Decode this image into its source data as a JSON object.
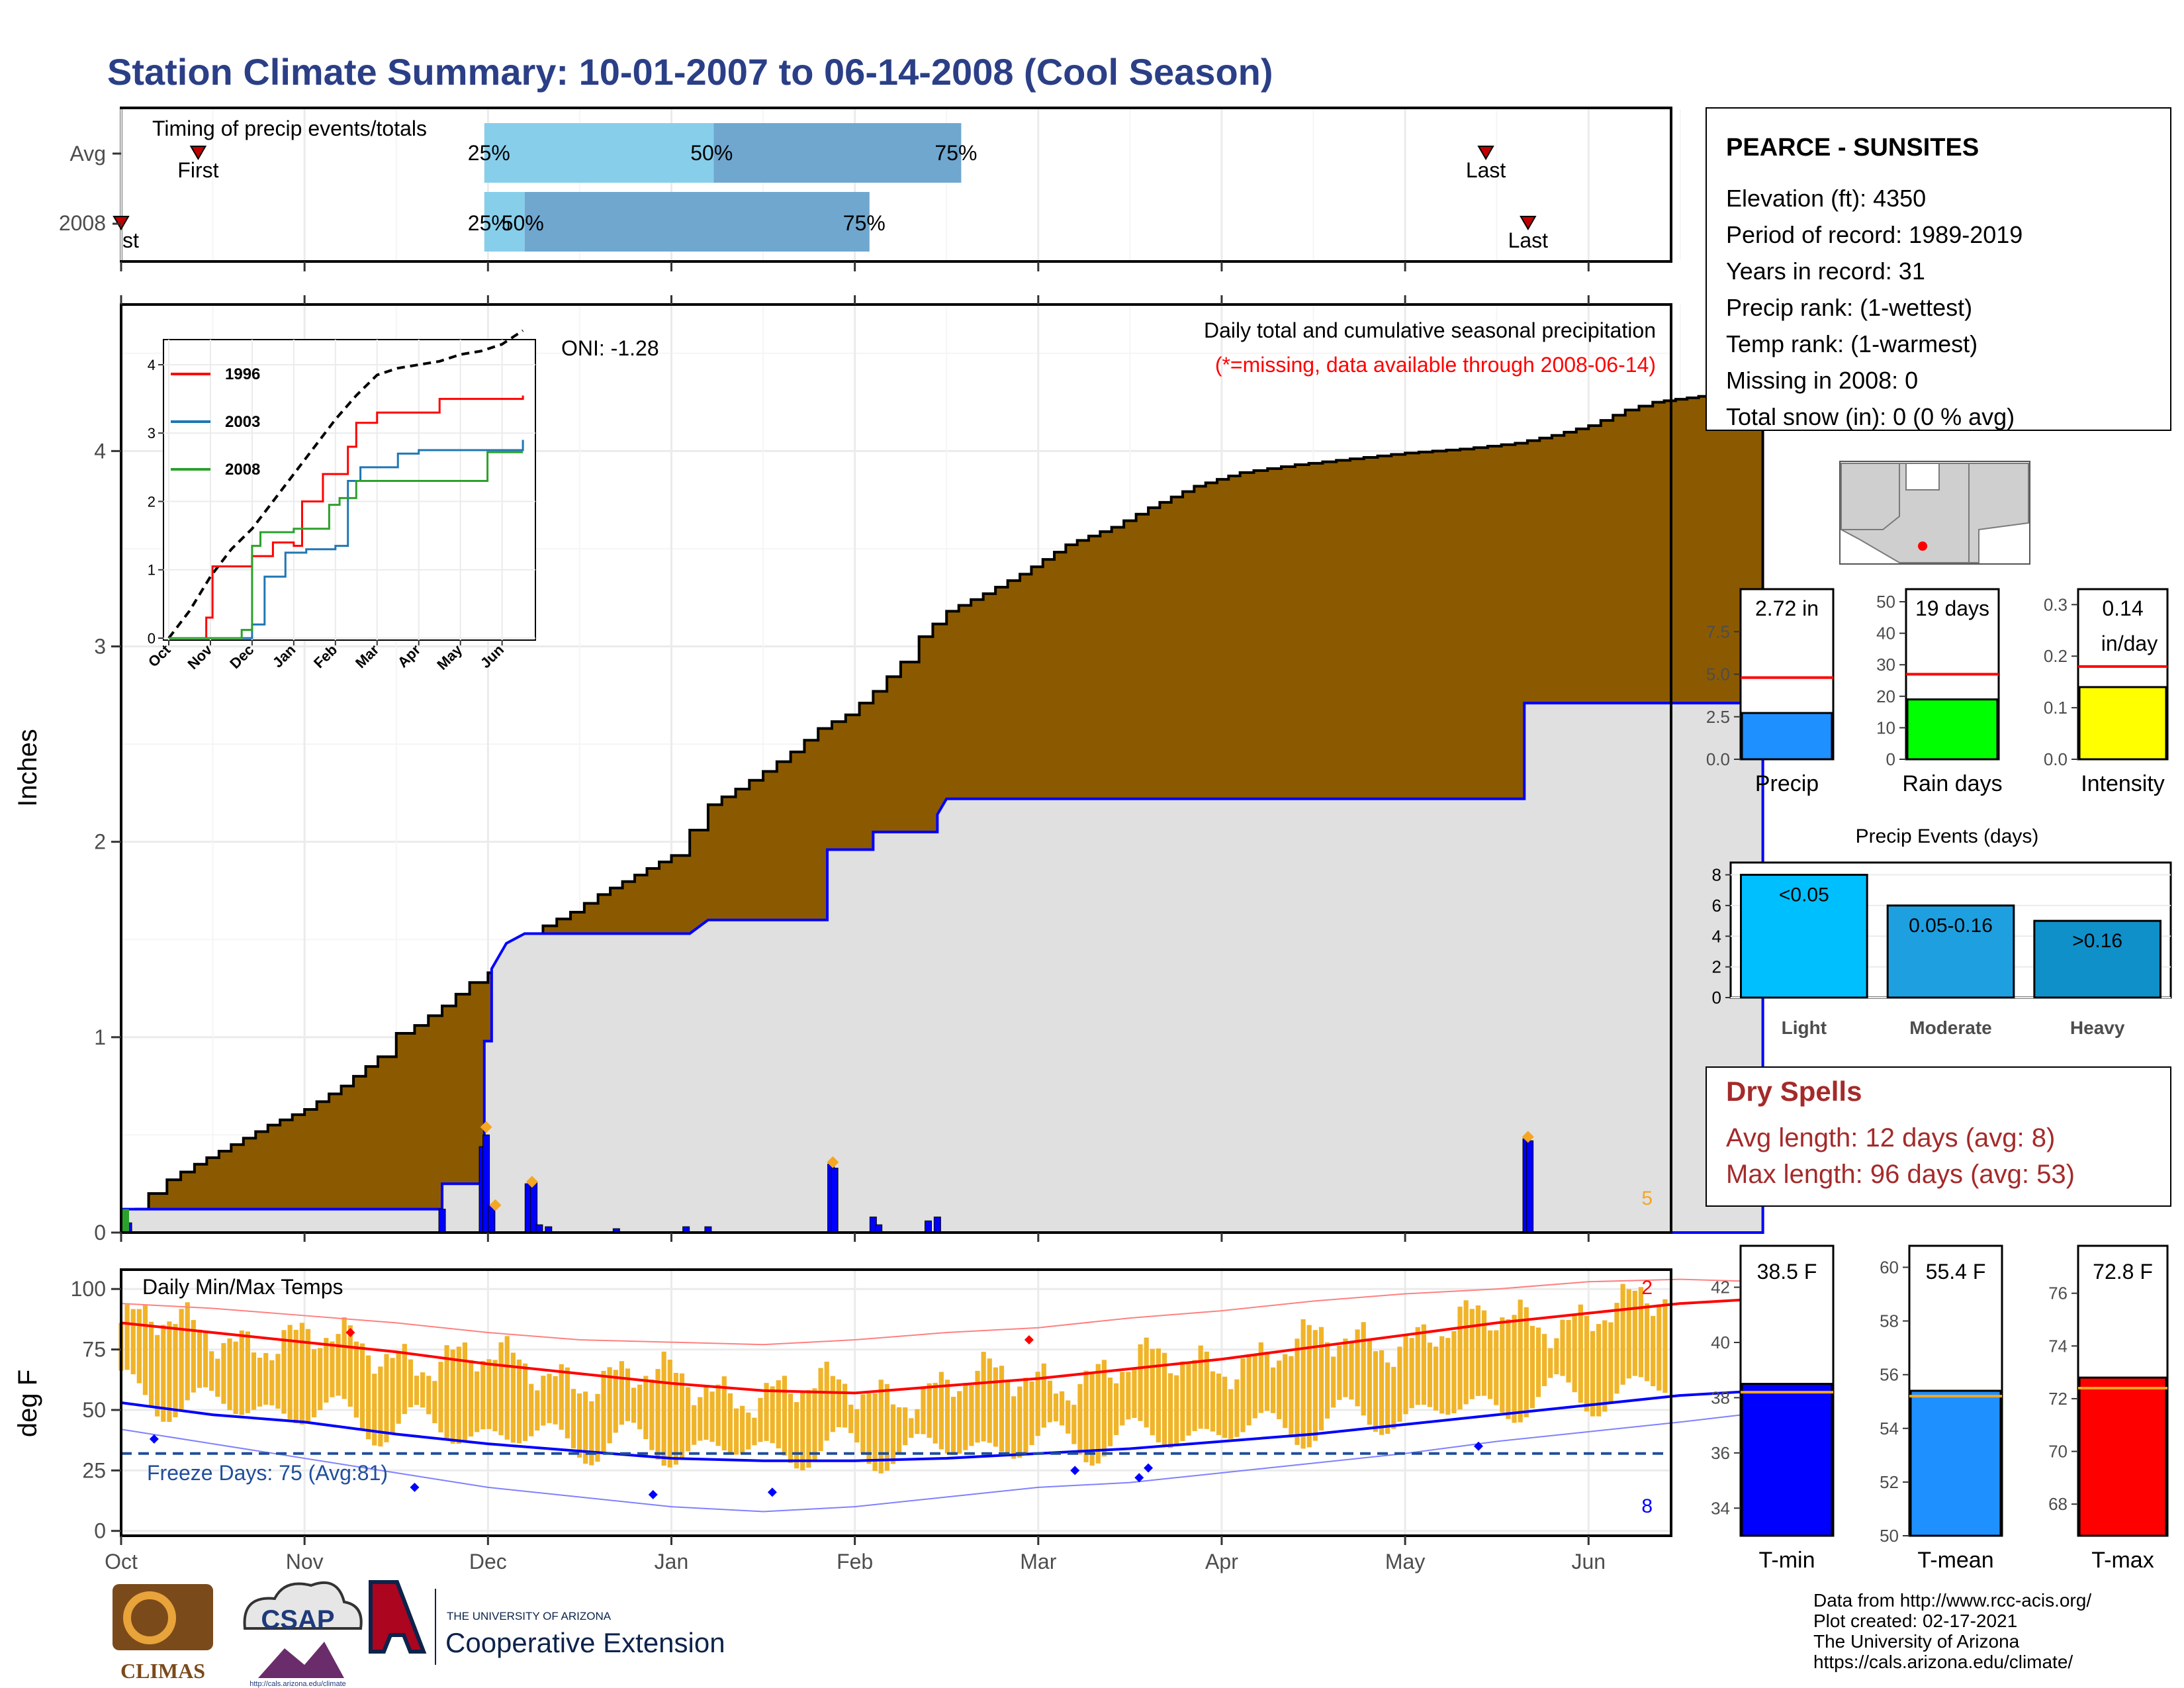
{
  "title": "Station Climate Summary: 10-01-2007 to 06-14-2008 (Cool Season)",
  "months": [
    "Oct",
    "Nov",
    "Dec",
    "Jan",
    "Feb",
    "Mar",
    "Apr",
    "May",
    "Jun"
  ],
  "colors": {
    "title": "#2b3f87",
    "brown": "#8b5a00",
    "gray_fill": "#e0e0e0",
    "blue": "#0000ff",
    "orange": "#f5a623",
    "red": "#ff0000",
    "tmin": "#0000ff",
    "tmean": "#1e90ff",
    "tmax": "#ff0000",
    "dry": "#a52a2a"
  },
  "timing": {
    "label": "Timing of precip events/totals",
    "rows": [
      "Avg",
      "2008"
    ],
    "first_label": "First",
    "last_label": "Last",
    "avg": {
      "first_month": 0.42,
      "p25": 1.98,
      "p50": 3.23,
      "p75": 4.58,
      "last_month": 7.44
    },
    "y2008": {
      "first_month": 0.0,
      "p25": 1.98,
      "p50": 2.2,
      "p75": 4.08,
      "last_month": 7.67
    },
    "avg_labels": [
      "25%",
      "50%",
      "75%"
    ],
    "y2008_labels": [
      "25%",
      "50%",
      "75%"
    ],
    "first_2008_partial": "st"
  },
  "main": {
    "ylabel": "Inches",
    "yticks": [
      0,
      1,
      2,
      3,
      4
    ],
    "ylim": [
      0,
      4.75
    ],
    "caption1": "Daily total and cumulative seasonal precipitation",
    "caption2": "(*=missing, data available through 2008-06-14)",
    "oni": "ONI: -1.28",
    "count_label": "5",
    "avg_cum": [
      [
        0,
        0.1
      ],
      [
        0.08,
        0.12
      ],
      [
        0.15,
        0.2
      ],
      [
        0.25,
        0.27
      ],
      [
        0.4,
        0.35
      ],
      [
        0.6,
        0.45
      ],
      [
        0.8,
        0.55
      ],
      [
        1.0,
        0.63
      ],
      [
        1.2,
        0.75
      ],
      [
        1.4,
        0.9
      ],
      [
        1.5,
        1.02
      ],
      [
        1.6,
        1.06
      ],
      [
        1.75,
        1.16
      ],
      [
        1.9,
        1.28
      ],
      [
        2.0,
        1.33
      ],
      [
        2.15,
        1.46
      ],
      [
        2.3,
        1.57
      ],
      [
        2.45,
        1.64
      ],
      [
        2.6,
        1.73
      ],
      [
        2.8,
        1.83
      ],
      [
        3.0,
        1.93
      ],
      [
        3.1,
        2.06
      ],
      [
        3.2,
        2.19
      ],
      [
        3.35,
        2.27
      ],
      [
        3.5,
        2.36
      ],
      [
        3.65,
        2.46
      ],
      [
        3.8,
        2.58
      ],
      [
        3.95,
        2.65
      ],
      [
        4.1,
        2.77
      ],
      [
        4.25,
        2.92
      ],
      [
        4.35,
        3.05
      ],
      [
        4.5,
        3.18
      ],
      [
        4.7,
        3.27
      ],
      [
        4.9,
        3.37
      ],
      [
        5.15,
        3.52
      ],
      [
        5.4,
        3.61
      ],
      [
        5.6,
        3.71
      ],
      [
        5.85,
        3.82
      ],
      [
        6.1,
        3.89
      ],
      [
        6.4,
        3.93
      ],
      [
        6.7,
        3.96
      ],
      [
        7.0,
        3.99
      ],
      [
        7.3,
        4.01
      ],
      [
        7.6,
        4.04
      ],
      [
        7.8,
        4.08
      ],
      [
        8.0,
        4.13
      ],
      [
        8.2,
        4.21
      ],
      [
        8.35,
        4.25
      ],
      [
        8.6,
        4.28
      ],
      [
        8.8,
        4.32
      ],
      [
        8.95,
        4.37
      ]
    ],
    "cur_cum": [
      [
        0,
        0.12
      ],
      [
        1.75,
        0.12
      ],
      [
        1.75,
        0.25
      ],
      [
        1.98,
        0.25
      ],
      [
        1.98,
        0.98
      ],
      [
        2.02,
        0.98
      ],
      [
        2.02,
        1.35
      ],
      [
        2.1,
        1.48
      ],
      [
        2.2,
        1.53
      ],
      [
        3.1,
        1.53
      ],
      [
        3.2,
        1.6
      ],
      [
        3.85,
        1.6
      ],
      [
        3.85,
        1.96
      ],
      [
        4.1,
        1.96
      ],
      [
        4.1,
        2.05
      ],
      [
        4.45,
        2.05
      ],
      [
        4.45,
        2.14
      ],
      [
        4.5,
        2.22
      ],
      [
        7.65,
        2.22
      ],
      [
        7.65,
        2.71
      ],
      [
        8.95,
        2.71
      ]
    ],
    "bars": [
      [
        0.02,
        0.1
      ],
      [
        0.04,
        0.05
      ],
      [
        1.75,
        0.12
      ],
      [
        1.97,
        0.44
      ],
      [
        1.99,
        0.5
      ],
      [
        2.02,
        0.14
      ],
      [
        2.22,
        0.25
      ],
      [
        2.25,
        0.26
      ],
      [
        2.28,
        0.04
      ],
      [
        2.33,
        0.03
      ],
      [
        2.7,
        0.02
      ],
      [
        3.08,
        0.03
      ],
      [
        3.2,
        0.03
      ],
      [
        3.87,
        0.35
      ],
      [
        3.89,
        0.33
      ],
      [
        4.1,
        0.08
      ],
      [
        4.13,
        0.04
      ],
      [
        4.4,
        0.06
      ],
      [
        4.45,
        0.08
      ],
      [
        7.66,
        0.48
      ],
      [
        7.68,
        0.47
      ]
    ],
    "bar_markers": [
      [
        1.99,
        0.54
      ],
      [
        2.04,
        0.14
      ],
      [
        2.24,
        0.26
      ],
      [
        3.88,
        0.36
      ],
      [
        7.67,
        0.49
      ]
    ]
  },
  "inset": {
    "yticks": [
      0,
      1,
      2,
      3,
      4
    ],
    "ylim": [
      0,
      4.3
    ],
    "legend": [
      {
        "name": "1996",
        "color": "#ff0000"
      },
      {
        "name": "2003",
        "color": "#1f77b4"
      },
      {
        "name": "2008",
        "color": "#2ca02c"
      }
    ],
    "avg": [
      [
        0,
        0
      ],
      [
        0.5,
        0.4
      ],
      [
        1,
        0.9
      ],
      [
        1.5,
        1.3
      ],
      [
        2,
        1.6
      ],
      [
        2.5,
        2.0
      ],
      [
        3,
        2.4
      ],
      [
        3.5,
        2.8
      ],
      [
        4,
        3.2
      ],
      [
        4.5,
        3.55
      ],
      [
        5,
        3.85
      ],
      [
        5.5,
        3.95
      ],
      [
        6,
        4.0
      ],
      [
        6.5,
        4.05
      ],
      [
        7,
        4.15
      ],
      [
        7.5,
        4.2
      ],
      [
        8,
        4.3
      ],
      [
        8.5,
        4.5
      ]
    ],
    "s1996": [
      [
        0,
        0
      ],
      [
        0.8,
        0
      ],
      [
        0.9,
        0.3
      ],
      [
        1.05,
        1.05
      ],
      [
        1.9,
        1.05
      ],
      [
        2.0,
        1.2
      ],
      [
        2.5,
        1.4
      ],
      [
        3.0,
        1.35
      ],
      [
        3.2,
        2.0
      ],
      [
        3.7,
        2.4
      ],
      [
        4.3,
        2.8
      ],
      [
        4.5,
        3.15
      ],
      [
        5.0,
        3.3
      ],
      [
        6.5,
        3.5
      ],
      [
        8.5,
        3.55
      ]
    ],
    "s2003": [
      [
        0,
        0
      ],
      [
        2.0,
        0.2
      ],
      [
        2.3,
        0.9
      ],
      [
        2.8,
        1.25
      ],
      [
        3.3,
        1.3
      ],
      [
        4.0,
        1.35
      ],
      [
        4.3,
        2.3
      ],
      [
        4.6,
        2.5
      ],
      [
        5.0,
        2.5
      ],
      [
        5.5,
        2.7
      ],
      [
        6,
        2.75
      ],
      [
        8.5,
        2.9
      ]
    ],
    "s2008": [
      [
        0,
        0
      ],
      [
        1.75,
        0.12
      ],
      [
        2.0,
        0.25
      ],
      [
        2.0,
        1.35
      ],
      [
        2.2,
        1.55
      ],
      [
        3.0,
        1.6
      ],
      [
        3.85,
        1.95
      ],
      [
        4.1,
        2.05
      ],
      [
        4.5,
        2.3
      ],
      [
        7.65,
        2.3
      ],
      [
        7.65,
        2.72
      ],
      [
        8.5,
        2.72
      ]
    ]
  },
  "temps": {
    "label": "Daily Min/Max Temps",
    "ylabel": "deg F",
    "yticks": [
      0,
      25,
      50,
      75,
      100
    ],
    "ylim": [
      -2,
      108
    ],
    "freeze": "Freeze Days: 75 (Avg:81)",
    "freeze_level": 32,
    "count_hi": "2",
    "count_lo": "8",
    "avg_max": [
      [
        0,
        86
      ],
      [
        0.5,
        82
      ],
      [
        1,
        78
      ],
      [
        1.5,
        74
      ],
      [
        2,
        69
      ],
      [
        2.5,
        65
      ],
      [
        3,
        61
      ],
      [
        3.5,
        58
      ],
      [
        4,
        57
      ],
      [
        4.5,
        60
      ],
      [
        5,
        63
      ],
      [
        5.5,
        67
      ],
      [
        6,
        71
      ],
      [
        6.5,
        76
      ],
      [
        7,
        81
      ],
      [
        7.5,
        86
      ],
      [
        8,
        90
      ],
      [
        8.5,
        94
      ],
      [
        8.95,
        96
      ]
    ],
    "avg_min": [
      [
        0,
        53
      ],
      [
        0.5,
        48
      ],
      [
        1,
        45
      ],
      [
        1.5,
        40
      ],
      [
        2,
        36
      ],
      [
        2.5,
        33
      ],
      [
        3,
        30
      ],
      [
        3.5,
        29
      ],
      [
        4,
        29
      ],
      [
        4.5,
        30
      ],
      [
        5,
        32
      ],
      [
        5.5,
        34
      ],
      [
        6,
        37
      ],
      [
        6.5,
        40
      ],
      [
        7,
        44
      ],
      [
        7.5,
        48
      ],
      [
        8,
        52
      ],
      [
        8.5,
        56
      ],
      [
        8.95,
        58
      ]
    ],
    "rec_max": [
      [
        0,
        94
      ],
      [
        0.5,
        92
      ],
      [
        1,
        89
      ],
      [
        1.5,
        86
      ],
      [
        2,
        82
      ],
      [
        2.5,
        79
      ],
      [
        3,
        78
      ],
      [
        3.5,
        77
      ],
      [
        4,
        79
      ],
      [
        4.5,
        82
      ],
      [
        5,
        84
      ],
      [
        5.5,
        88
      ],
      [
        6,
        91
      ],
      [
        6.5,
        95
      ],
      [
        7,
        98
      ],
      [
        7.5,
        100
      ],
      [
        8,
        103
      ],
      [
        8.5,
        104
      ],
      [
        8.95,
        103
      ]
    ],
    "rec_min": [
      [
        0,
        42
      ],
      [
        0.5,
        36
      ],
      [
        1,
        30
      ],
      [
        1.5,
        24
      ],
      [
        2,
        18
      ],
      [
        2.5,
        14
      ],
      [
        3,
        10
      ],
      [
        3.5,
        8
      ],
      [
        4,
        10
      ],
      [
        4.5,
        14
      ],
      [
        5,
        18
      ],
      [
        5.5,
        20
      ],
      [
        6,
        24
      ],
      [
        6.5,
        28
      ],
      [
        7,
        32
      ],
      [
        7.5,
        37
      ],
      [
        8,
        41
      ],
      [
        8.5,
        45
      ],
      [
        8.95,
        49
      ]
    ],
    "hi_markers": [
      [
        1.25,
        82
      ],
      [
        4.95,
        79
      ]
    ],
    "lo_markers": [
      [
        0.18,
        38
      ],
      [
        1.6,
        18
      ],
      [
        2.9,
        15
      ],
      [
        3.55,
        16
      ],
      [
        5.2,
        25
      ],
      [
        5.55,
        22
      ],
      [
        5.6,
        26
      ],
      [
        7.4,
        35
      ]
    ]
  },
  "station": {
    "name": "PEARCE - SUNSITES",
    "lines": [
      "Elevation (ft): 4350",
      "Period of record: 1989-2019",
      "Years in record: 31",
      "Precip rank:  (1-wettest)",
      "Temp rank:  (1-warmest)",
      "Missing in 2008: 0",
      "Total snow (in): 0 (0 % avg)"
    ]
  },
  "small_bars": [
    {
      "label": "Precip",
      "value_text": "2.72 in",
      "value": 2.72,
      "avg": 4.8,
      "ymax": 10.0,
      "yticks": [
        0.0,
        2.5,
        5.0,
        7.5
      ],
      "color": "#1e90ff"
    },
    {
      "label": "Rain days",
      "value_text": "19 days",
      "value": 19,
      "avg": 27,
      "ymax": 54,
      "yticks": [
        0,
        10,
        20,
        30,
        40,
        50
      ],
      "color": "#00ff00"
    },
    {
      "label": "Intensity",
      "value_text": "0.14",
      "value_text2": "in/day",
      "value": 0.14,
      "avg": 0.18,
      "ymax": 0.33,
      "yticks": [
        0.0,
        0.1,
        0.2,
        0.3
      ],
      "color": "#ffff00"
    }
  ],
  "events": {
    "title": "Precip Events (days)",
    "yticks": [
      0,
      2,
      4,
      6,
      8
    ],
    "categories": [
      "Light",
      "Moderate",
      "Heavy"
    ],
    "values": [
      8,
      6,
      5
    ],
    "bar_labels": [
      "<0.05",
      "0.05-0.16",
      ">0.16"
    ],
    "colors": [
      "#00bfff",
      "#1ea0e0",
      "#0f90c8"
    ]
  },
  "dry": {
    "title": "Dry Spells",
    "line1": "Avg length: 12 days (avg: 8)",
    "line2": "Max length: 96 days (avg: 53)"
  },
  "temp_bars": [
    {
      "label": "T-min",
      "value_text": "38.5 F",
      "value": 38.5,
      "avg": 38.2,
      "ymin": 33,
      "ymax": 43.5,
      "yticks": [
        34,
        36,
        38,
        40,
        42
      ],
      "color": "#0000ff"
    },
    {
      "label": "T-mean",
      "value_text": "55.4 F",
      "value": 55.4,
      "avg": 55.2,
      "ymin": 50,
      "ymax": 60.8,
      "yticks": [
        50,
        52,
        54,
        56,
        58,
        60
      ],
      "color": "#1e90ff"
    },
    {
      "label": "T-max",
      "value_text": "72.8 F",
      "value": 72.8,
      "avg": 72.4,
      "ymin": 66.8,
      "ymax": 77.8,
      "yticks": [
        68,
        70,
        72,
        74,
        76
      ],
      "color": "#ff0000"
    }
  ],
  "logos": {
    "climas": "CLIMAS",
    "csap": "CSAP",
    "csap_url": "http://cals.arizona.edu/climate",
    "ua_small": "THE UNIVERSITY OF ARIZONA",
    "ua_big": "Cooperative Extension"
  },
  "footer": [
    "Data from http://www.rcc-acis.org/",
    "Plot created: 02-17-2021",
    "The University of Arizona",
    "https://cals.arizona.edu/climate/"
  ]
}
